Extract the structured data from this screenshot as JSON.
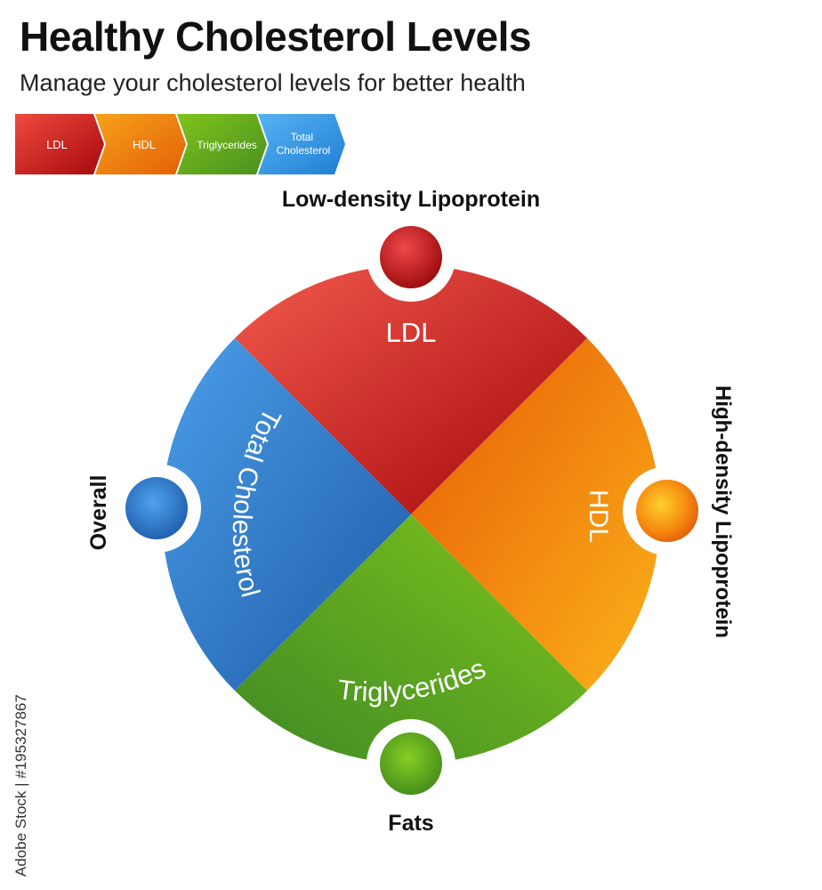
{
  "header": {
    "title": "Healthy Cholesterol Levels",
    "subtitle": "Manage your cholesterol levels for better health"
  },
  "legend": [
    {
      "label": "LDL",
      "color": "#d92b2b"
    },
    {
      "label": "HDL",
      "color": "#f08a0c"
    },
    {
      "label": "Triglycerides",
      "color": "#6aa81f"
    },
    {
      "label": "Total Cholesterol",
      "color": "#2a8fe0"
    }
  ],
  "segments": [
    {
      "key": "ldl",
      "label": "LDL",
      "callout": "Low-density Lipoprotein",
      "color_light": "#f25a4c",
      "color_dark": "#a3050b"
    },
    {
      "key": "hdl",
      "label": "HDL",
      "callout": "High-density Lipoprotein",
      "color_light": "#fbb21a",
      "color_dark": "#e75b05"
    },
    {
      "key": "triglycerides",
      "label": "Triglycerides",
      "callout": "Fats",
      "color_light": "#7fc41c",
      "color_dark": "#3f8a25"
    },
    {
      "key": "total",
      "label": "Total Cholesterol",
      "callout": "Overall",
      "color_light": "#4a9ee8",
      "color_dark": "#1e5aa8"
    }
  ],
  "watermark": "Adobe Stock | #195327867"
}
